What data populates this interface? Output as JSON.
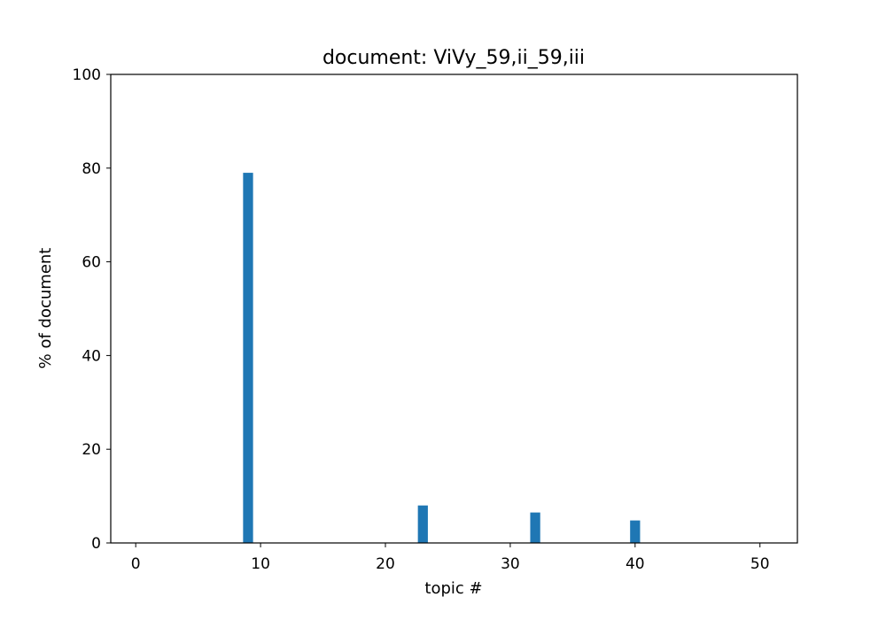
{
  "chart_data": {
    "type": "bar",
    "title": "document: ViVy_59,ii_59,iii",
    "xlabel": "topic #",
    "ylabel": "% of document",
    "xlim": [
      -2,
      53
    ],
    "ylim": [
      0,
      100
    ],
    "xticks": [
      0,
      10,
      20,
      30,
      40,
      50
    ],
    "yticks": [
      0,
      20,
      40,
      60,
      80,
      100
    ],
    "x": [
      9,
      23,
      32,
      40
    ],
    "values": [
      79,
      8,
      6.5,
      4.8
    ],
    "bar_color": "#1f77b4",
    "grid": false,
    "legend": "none"
  }
}
